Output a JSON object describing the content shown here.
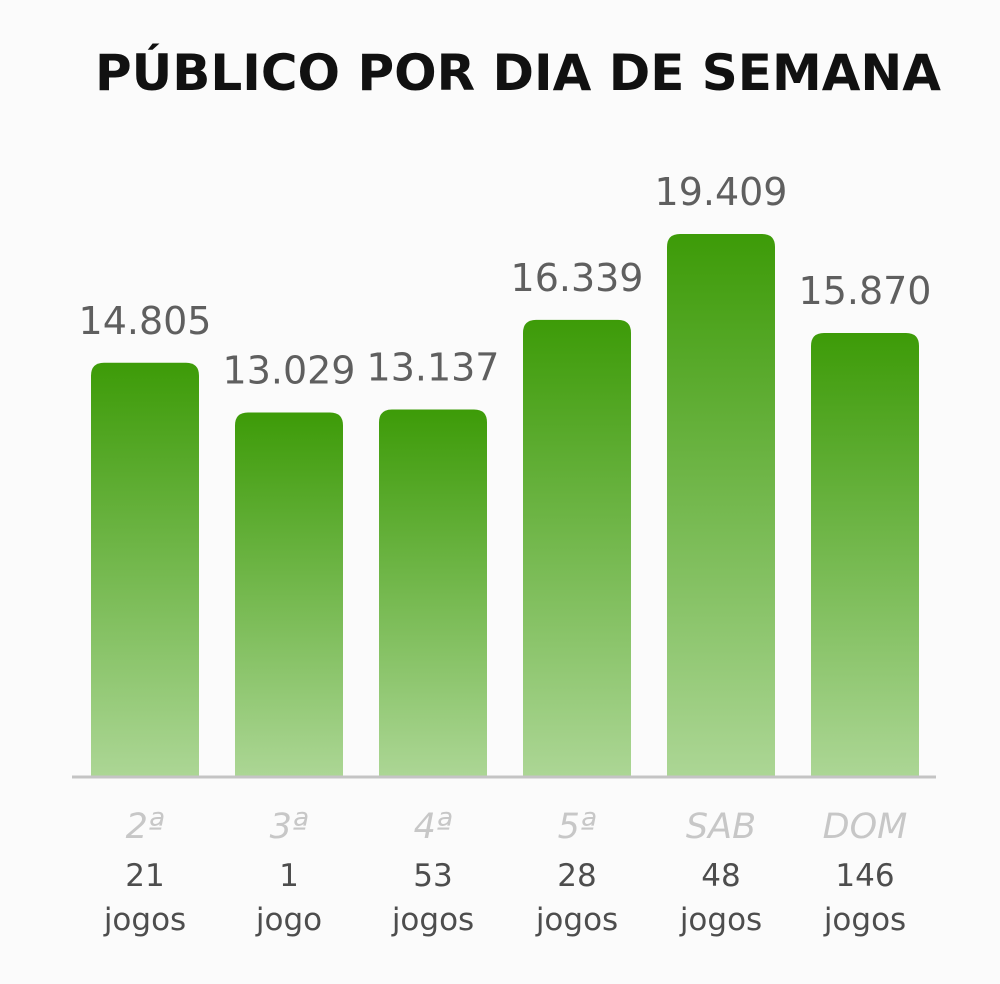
{
  "chart_data": {
    "type": "bar",
    "title": "PÚBLICO POR DIA DE SEMANA",
    "categories": [
      "2ª",
      "3ª",
      "4ª",
      "5ª",
      "SAB",
      "DOM"
    ],
    "values": [
      14805,
      13029,
      13137,
      16339,
      19409,
      15870
    ],
    "value_labels": [
      "14.805",
      "13.029",
      "13.137",
      "16.339",
      "19.409",
      "15.870"
    ],
    "games": [
      {
        "count": "21",
        "unit": "jogos"
      },
      {
        "count": "1",
        "unit": "jogo"
      },
      {
        "count": "53",
        "unit": "jogos"
      },
      {
        "count": "28",
        "unit": "jogos"
      },
      {
        "count": "48",
        "unit": "jogos"
      },
      {
        "count": "146",
        "unit": "jogos"
      }
    ],
    "xlabel": "",
    "ylabel": "",
    "ylim": [
      0,
      23000
    ],
    "grid": false,
    "colors": {
      "bar_top": "#3d9b08",
      "bar_bottom": "#acd695",
      "axis": "#c4c4c4"
    }
  }
}
